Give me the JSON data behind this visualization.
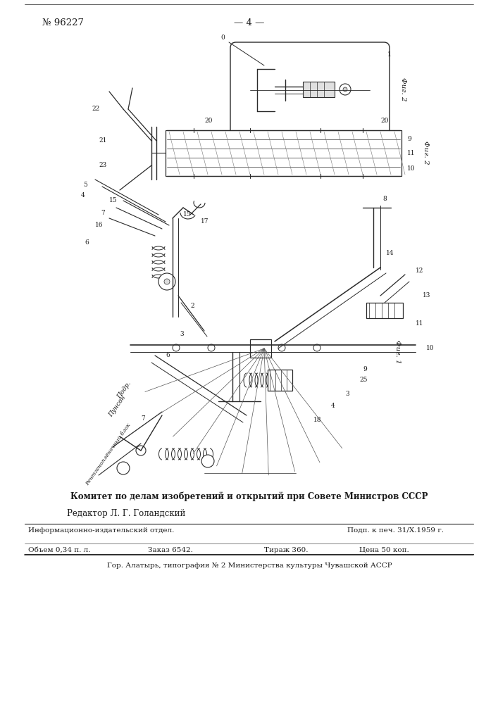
{
  "background_color": "#ffffff",
  "header_left": "№ 96227",
  "header_center": "— 4 —",
  "committee_text": "Комитет по делам изобретений и открытий при Совете Министров СССР",
  "editor_text": "Редактор Л. Г. Голандский",
  "row1_left": "Информационно-издательский отдел.",
  "row1_right": "Подп. к печ. 31/X.1959 г.",
  "row2_col1": "Объем 0,34 п. л.",
  "row2_col2": "Заказ 6542.",
  "row2_col3": "Тираж 360.",
  "row2_col4": "Цена 50 коп.",
  "bottom_text": "Гор. Алатырь, типография № 2 Министерства культуры Чувашской АССР",
  "text_color": "#1a1a1a",
  "line_color": "#2a2a2a",
  "fig2_rotated_label": "Фиг. 2",
  "fig1_rotated_label": "Фиг. 1",
  "rotated_text1": "Подр.",
  "rotated_text2": "Пунсон",
  "rotated_text3": "Рентгеноплёночный блок"
}
